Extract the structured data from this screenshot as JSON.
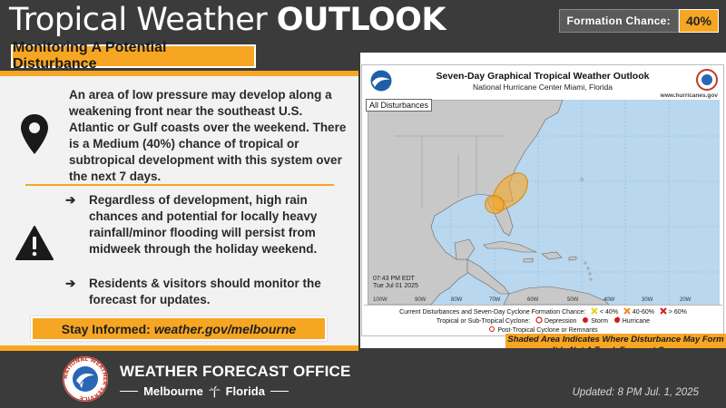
{
  "header": {
    "title_light": "Tropical Weather",
    "title_bold": "OUTLOOK",
    "formation_chance_label": "Formation Chance:",
    "formation_chance_value": "40%"
  },
  "subtitle": "Monitoring A Potential Disturbance",
  "summary": "An area of low pressure may develop along a weakening front near the southeast U.S. Atlantic or Gulf coasts over the weekend. There is a Medium (40%) chance of tropical or subtropical development with this system over the next 7 days.",
  "bullets": [
    "Regardless of development, high rain chances and potential for locally heavy rainfall/minor flooding will persist from midweek through the holiday weekend.",
    "Residents & visitors should monitor the forecast for updates."
  ],
  "bullet_arrow": "➔",
  "stay_informed": {
    "label": "Stay Informed:",
    "url": "weather.gov/melbourne"
  },
  "map": {
    "title": "Seven-Day Graphical Tropical Weather Outlook",
    "subtitle": "National Hurricane Center  Miami, Florida",
    "website": "www.hurricanes.gov",
    "selector": "All Disturbances",
    "time": "07:43 PM EDT",
    "date": "Tue Jul 01 2025",
    "longitudes": [
      "100W",
      "90W",
      "80W",
      "70W",
      "60W",
      "50W",
      "40W",
      "30W",
      "20W"
    ],
    "legend_line1_label": "Current Disturbances and Seven-Day Cyclone Formation Chance:",
    "legend_low": "< 40%",
    "legend_mid": "40-60%",
    "legend_high": "> 60%",
    "legend_line2_label": "Tropical or Sub-Tropical Cyclone:",
    "legend_depression": "Depression",
    "legend_storm": "Storm",
    "legend_hurricane": "Hurricane",
    "legend_post": "Post-Tropical Cyclone or Remnants"
  },
  "shade_note": {
    "line1": "Shaded Area Indicates Where Disturbance May Form",
    "line2_a": "It Is ",
    "line2_not": "Not",
    "line2_b": " A Track Forecast Cone"
  },
  "footer": {
    "office": "WEATHER FORECAST OFFICE",
    "city": "Melbourne",
    "state": "Florida",
    "updated": "Updated: 8 PM Jul. 1, 2025",
    "seal_text": "NATIONAL WEATHER SERVICE"
  },
  "colors": {
    "accent": "#f6a623",
    "header_bg": "#3b3b3b",
    "panel_bg": "#f2f2f2",
    "land": "#c8c8c8",
    "water": "#b9d7ee",
    "outlook_area": "#f6a623"
  },
  "icons": {
    "location": "map-pin-icon",
    "warning": "warning-triangle-icon",
    "palm": "palm-tree-icon"
  }
}
